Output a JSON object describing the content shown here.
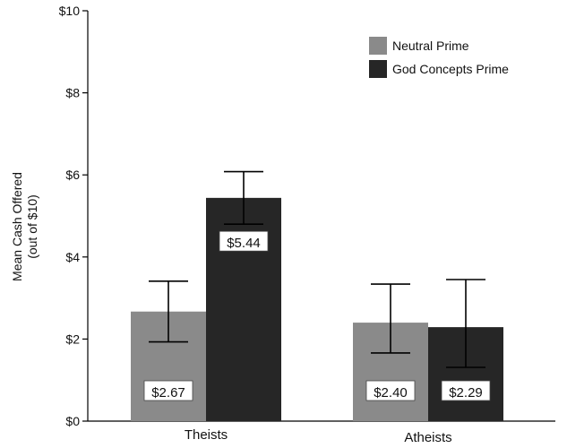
{
  "chart_data": {
    "type": "bar",
    "categories": [
      "Theists",
      "Atheists"
    ],
    "series": [
      {
        "name": "Neutral Prime",
        "values": [
          2.67,
          2.4
        ],
        "error_low": [
          1.93,
          1.66
        ],
        "error_high": [
          3.41,
          3.34
        ],
        "value_labels": [
          "$2.67",
          "$2.40"
        ],
        "color": "#8a8a8a"
      },
      {
        "name": "God Concepts Prime",
        "values": [
          5.44,
          2.29
        ],
        "error_low": [
          4.8,
          1.31
        ],
        "error_high": [
          6.08,
          3.45
        ],
        "value_labels": [
          "$5.44",
          "$2.29"
        ],
        "color": "#262626"
      }
    ],
    "ylabel_line1": "Mean Cash Offered",
    "ylabel_line2": "(out of $10)",
    "ylim": [
      0,
      10
    ],
    "yticks": [
      0,
      2,
      4,
      6,
      8,
      10
    ],
    "ytick_labels": [
      "$0",
      "$2",
      "$4",
      "$6",
      "$8",
      "$10"
    ],
    "legend_position": "top-right",
    "grid": false
  }
}
